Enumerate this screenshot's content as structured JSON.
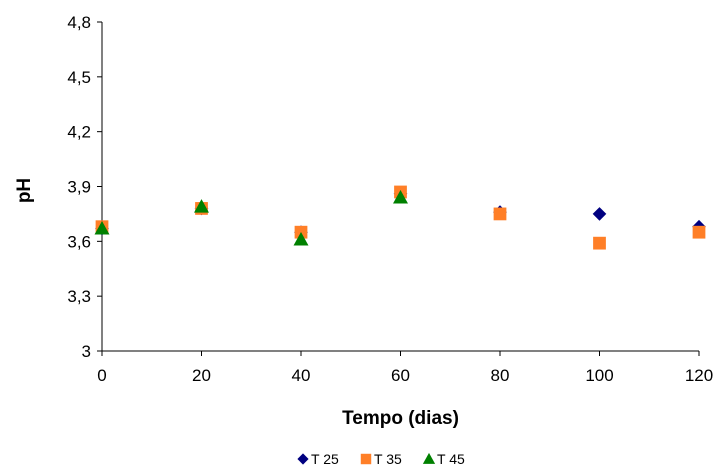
{
  "chart_data": {
    "type": "scatter",
    "title": "",
    "xlabel": "Tempo (dias)",
    "ylabel": "pH",
    "xlim": [
      0,
      120
    ],
    "ylim": [
      3,
      4.8
    ],
    "x_ticks": [
      "0",
      "20",
      "40",
      "60",
      "80",
      "100",
      "120"
    ],
    "y_ticks": [
      "3",
      "3,3",
      "3,6",
      "3,9",
      "4,2",
      "4,5",
      "4,8"
    ],
    "grid": false,
    "legend_position": "bottom",
    "series": [
      {
        "name": "T 25",
        "marker": "diamond",
        "color": "#000080",
        "x": [
          0,
          20,
          40,
          60,
          80,
          100,
          120
        ],
        "y": [
          3.67,
          3.78,
          3.65,
          3.86,
          3.76,
          3.75,
          3.68
        ]
      },
      {
        "name": "T 35",
        "marker": "square",
        "color": "#FF7F27",
        "x": [
          0,
          20,
          40,
          60,
          80,
          100,
          120
        ],
        "y": [
          3.68,
          3.78,
          3.65,
          3.87,
          3.75,
          3.59,
          3.65
        ]
      },
      {
        "name": "T 45",
        "marker": "triangle",
        "color": "#008000",
        "x": [
          0,
          20,
          40,
          60
        ],
        "y": [
          3.67,
          3.79,
          3.61,
          3.84
        ]
      }
    ]
  }
}
